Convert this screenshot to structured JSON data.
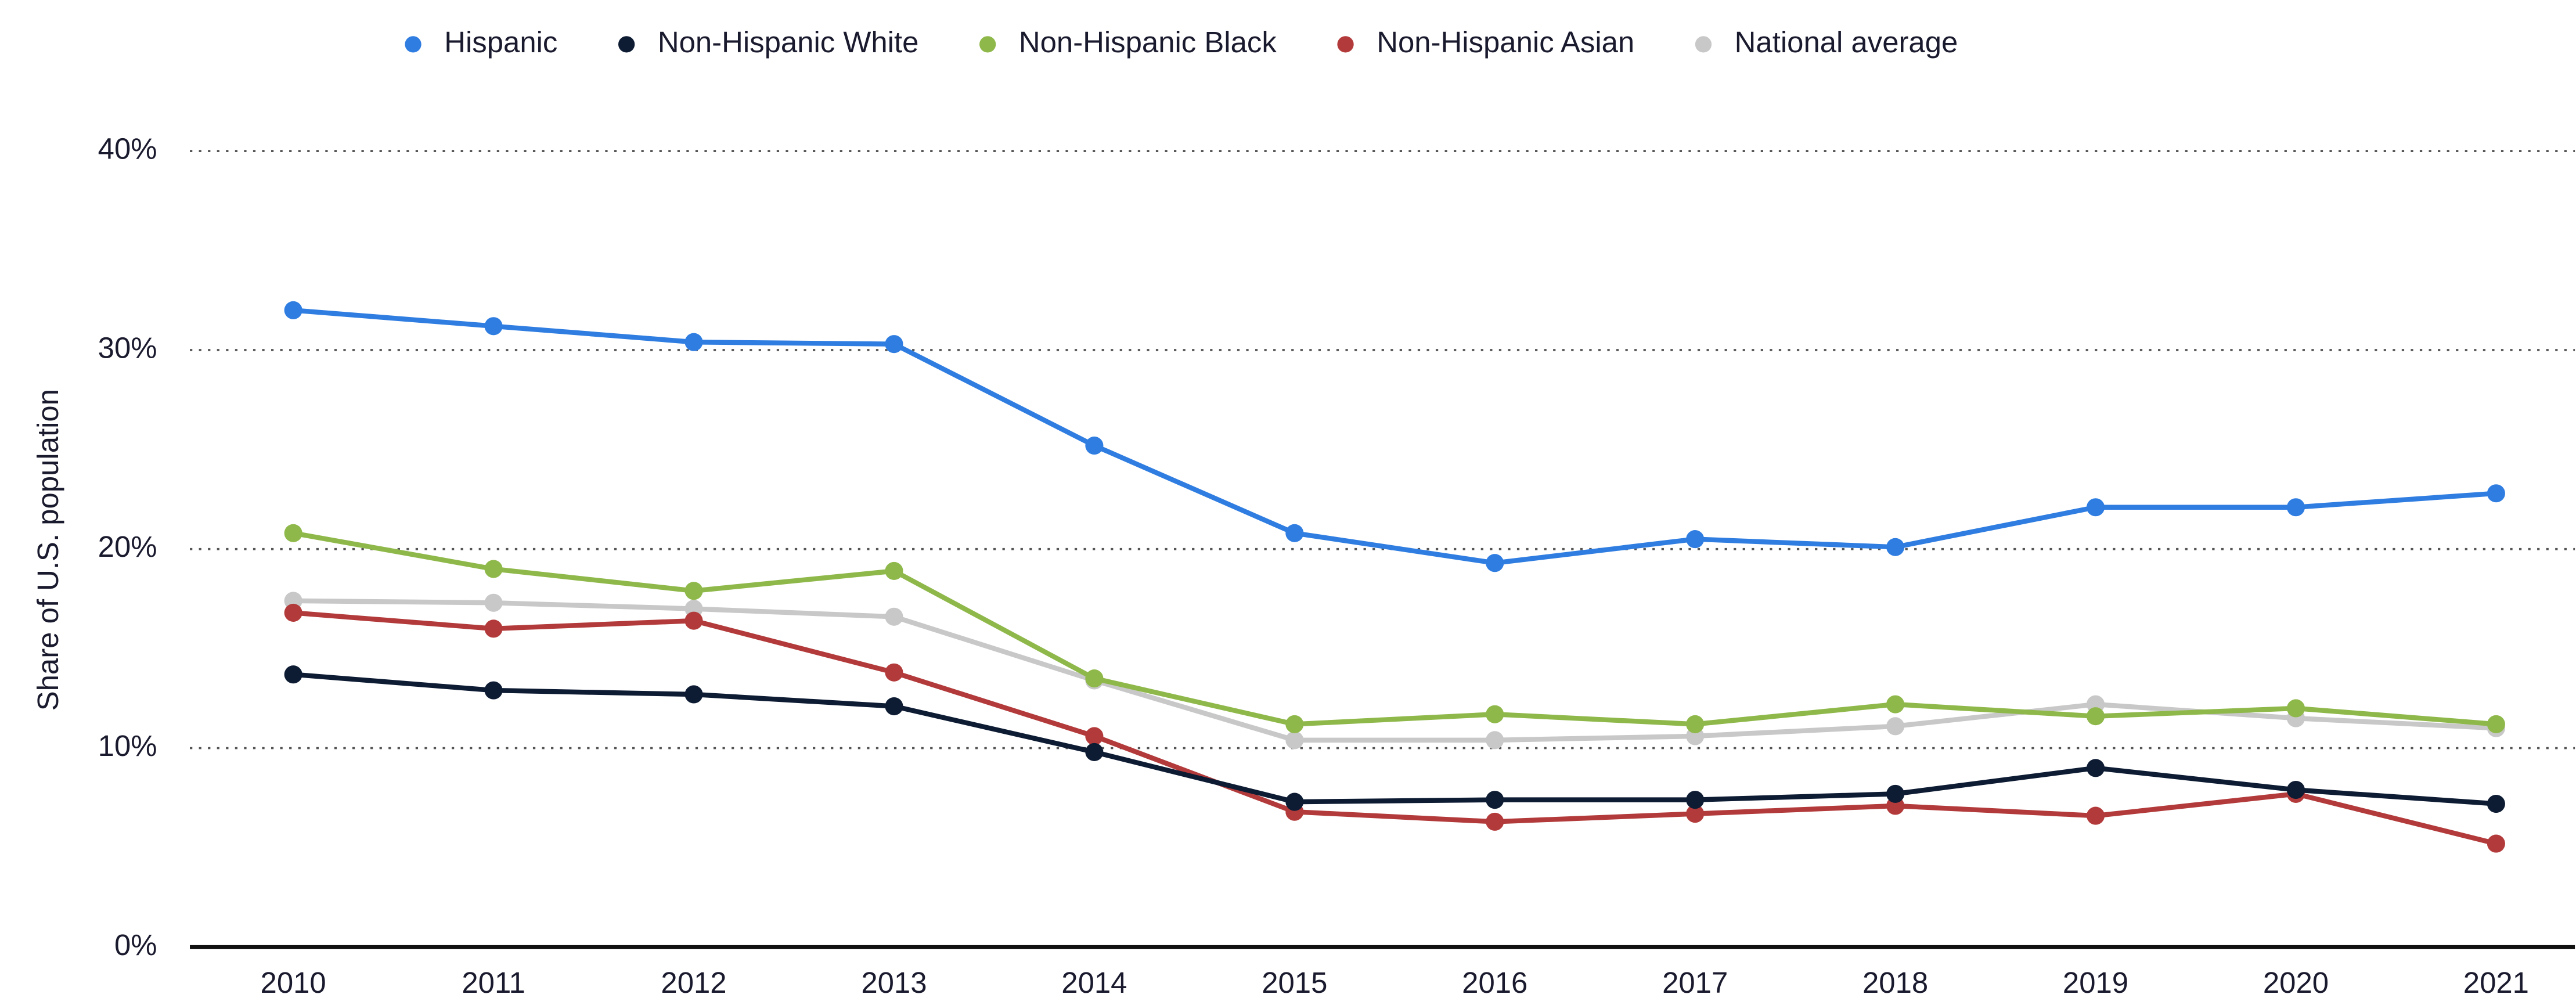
{
  "chart_data": {
    "type": "line",
    "y_label": "Share of U.S. population",
    "categories": [
      "2010",
      "2011",
      "2012",
      "2013",
      "2014",
      "2015",
      "2016",
      "2017",
      "2018",
      "2019",
      "2020",
      "2021"
    ],
    "ylim": [
      0,
      40
    ],
    "yticks": [
      {
        "value": 0,
        "label": "0%"
      },
      {
        "value": 10,
        "label": "10%"
      },
      {
        "value": 20,
        "label": "20%"
      },
      {
        "value": 30,
        "label": "30%"
      },
      {
        "value": 40,
        "label": "40%"
      }
    ],
    "grid": true,
    "legend": "top",
    "series": [
      {
        "name": "Hispanic",
        "color": "#2f7de1",
        "values": [
          32.0,
          31.2,
          30.4,
          30.3,
          25.2,
          20.8,
          19.3,
          20.5,
          20.1,
          22.1,
          22.1,
          22.8
        ]
      },
      {
        "name": "Non-Hispanic White",
        "color": "#0d1b33",
        "values": [
          13.7,
          12.9,
          12.7,
          12.1,
          9.8,
          7.3,
          7.4,
          7.4,
          7.7,
          9.0,
          7.9,
          7.2
        ]
      },
      {
        "name": "Non-Hispanic Black",
        "color": "#8fb84a",
        "values": [
          20.8,
          19.0,
          17.9,
          18.9,
          13.5,
          11.2,
          11.7,
          11.2,
          12.2,
          11.6,
          12.0,
          11.2
        ]
      },
      {
        "name": "Non-Hispanic Asian",
        "color": "#b33a3a",
        "values": [
          16.8,
          16.0,
          16.4,
          13.8,
          10.6,
          6.8,
          6.3,
          6.7,
          7.1,
          6.6,
          7.7,
          5.2
        ]
      },
      {
        "name": "National average",
        "color": "#c8c8c8",
        "values": [
          17.4,
          17.3,
          17.0,
          16.6,
          13.4,
          10.4,
          10.4,
          10.6,
          11.1,
          12.2,
          11.5,
          11.0
        ]
      }
    ]
  }
}
